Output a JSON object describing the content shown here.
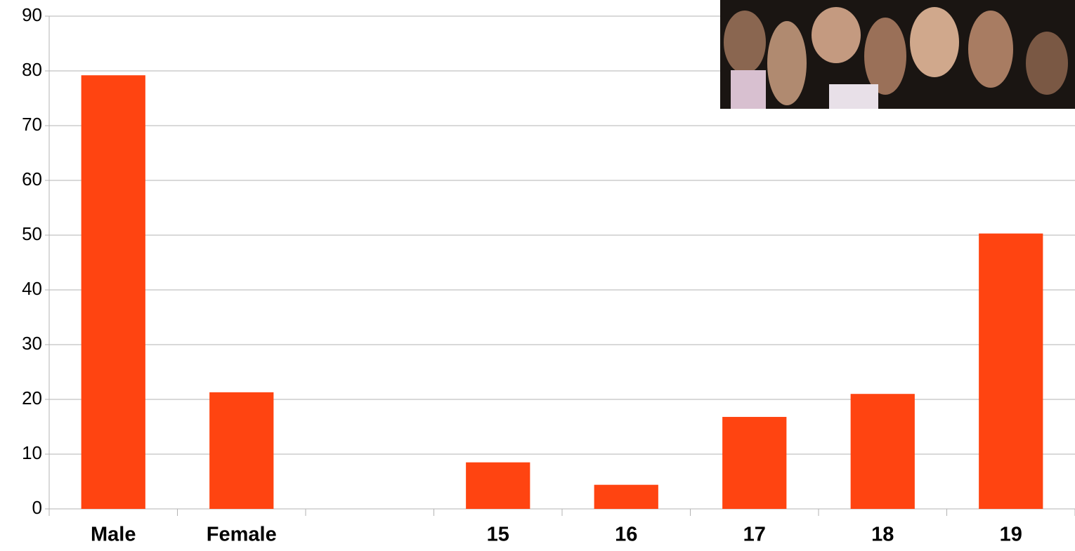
{
  "chart_data": {
    "type": "bar",
    "categories": [
      "Male",
      "Female",
      null,
      "15",
      "16",
      "17",
      "18",
      "19"
    ],
    "values": [
      79.2,
      21.3,
      null,
      8.5,
      4.4,
      16.8,
      21.0,
      50.3
    ],
    "color": "#ff4411",
    "ylim": [
      0,
      90
    ],
    "yticks": [
      0,
      10,
      20,
      30,
      40,
      50,
      60,
      70,
      80,
      90
    ],
    "grid": true
  }
}
